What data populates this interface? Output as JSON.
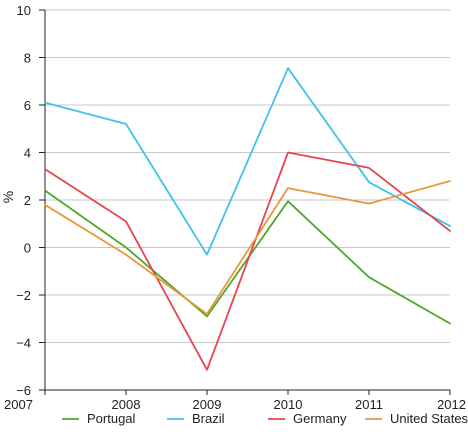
{
  "chart_data": {
    "type": "line",
    "title": "",
    "xlabel": "",
    "ylabel": "%",
    "categories": [
      "2007",
      "2008",
      "2009",
      "2010",
      "2011",
      "2012"
    ],
    "ylim": [
      -6,
      10
    ],
    "yticks": [
      -6,
      -4,
      -2,
      0,
      2,
      4,
      6,
      8,
      10
    ],
    "ytick_labels": [
      "−6",
      "−4",
      "−2",
      "0",
      "2",
      "4",
      "6",
      "8",
      "10"
    ],
    "grid": "horizontal",
    "legend_position": "bottom",
    "series": [
      {
        "name": "Portugal",
        "color": "#4fa72a",
        "values": [
          2.4,
          0.0,
          -2.9,
          1.95,
          -1.25,
          -3.2
        ]
      },
      {
        "name": "Brazil",
        "color": "#3fc3ec",
        "values": [
          6.1,
          5.2,
          -0.3,
          7.55,
          2.75,
          0.9
        ]
      },
      {
        "name": "Germany",
        "color": "#e8444f",
        "values": [
          3.3,
          1.1,
          -5.15,
          4.0,
          3.35,
          0.7
        ]
      },
      {
        "name": "United States",
        "color": "#e9973f",
        "values": [
          1.8,
          -0.3,
          -2.8,
          2.5,
          1.85,
          2.8
        ]
      }
    ]
  }
}
